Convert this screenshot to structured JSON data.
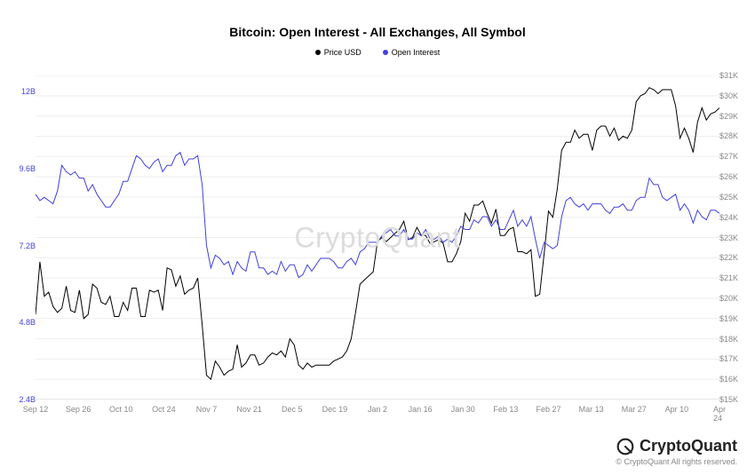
{
  "title": "Bitcoin: Open Interest - All Exchanges, All Symbol",
  "legend": [
    {
      "label": "Price USD",
      "color": "#000000"
    },
    {
      "label": "Open Interest",
      "color": "#4040e0"
    }
  ],
  "watermark": "CryptoQuant",
  "footer": {
    "brand": "CryptoQuant",
    "copyright": "© CryptoQuant All rights reserved."
  },
  "chart": {
    "type": "line",
    "background_color": "#ffffff",
    "grid_color": "#eeeeee",
    "x": {
      "categories": [
        "Sep 12",
        "Sep 26",
        "Oct 10",
        "Oct 24",
        "Nov 7",
        "Nov 21",
        "Dec 5",
        "Dec 19",
        "Jan 2",
        "Jan 16",
        "Jan 30",
        "Feb 13",
        "Feb 27",
        "Mar 13",
        "Mar 27",
        "Apr 10",
        "Apr 24"
      ],
      "label_fontsize": 9,
      "label_color": "#888888"
    },
    "y_left": {
      "min": 2.4,
      "max": 12.5,
      "ticks": [
        2.4,
        4.8,
        7.2,
        9.6,
        12
      ],
      "unit_suffix": "B",
      "color": "#4040e0",
      "label_fontsize": 9
    },
    "y_right": {
      "min": 15000,
      "max": 31000,
      "ticks": [
        15000,
        16000,
        17000,
        18000,
        19000,
        20000,
        21000,
        22000,
        23000,
        24000,
        25000,
        26000,
        27000,
        28000,
        29000,
        30000,
        31000
      ],
      "prefix": "$",
      "suffix": "K",
      "divisor": 1000,
      "color": "#888888",
      "label_fontsize": 9
    },
    "series": [
      {
        "name": "Price USD",
        "axis": "right",
        "color": "#000000",
        "line_width": 1,
        "data": [
          19200,
          21800,
          20100,
          20300,
          19600,
          19300,
          19500,
          20600,
          19400,
          19300,
          20400,
          19000,
          19200,
          20700,
          20500,
          19800,
          19700,
          20100,
          19100,
          19100,
          19800,
          19400,
          20500,
          20500,
          19100,
          19100,
          20400,
          20300,
          20400,
          19400,
          21500,
          21400,
          20600,
          21100,
          20200,
          20400,
          20500,
          21000,
          18700,
          16200,
          16000,
          16900,
          16600,
          16200,
          16400,
          16500,
          17700,
          16600,
          16800,
          17200,
          17200,
          16700,
          16800,
          17100,
          17300,
          17200,
          17400,
          17100,
          18000,
          17700,
          16700,
          16500,
          16800,
          16600,
          16700,
          16700,
          16700,
          16700,
          16900,
          17000,
          17100,
          17400,
          18000,
          19300,
          20700,
          20900,
          21100,
          21300,
          22800,
          23000,
          22800,
          23000,
          23200,
          23400,
          23800,
          22900,
          23000,
          23500,
          23100,
          23100,
          22700,
          22800,
          22900,
          22700,
          21800,
          21800,
          22200,
          22800,
          24200,
          23800,
          24600,
          24600,
          24800,
          24200,
          23700,
          24400,
          23100,
          23100,
          23400,
          23500,
          22300,
          22300,
          22200,
          22400,
          20100,
          20200,
          22200,
          24300,
          24000,
          25400,
          27300,
          27700,
          27700,
          28300,
          27900,
          28100,
          28100,
          27300,
          28300,
          28500,
          28500,
          28000,
          28400,
          27800,
          28000,
          27900,
          28300,
          29700,
          30000,
          30100,
          30400,
          30300,
          30100,
          30300,
          30300,
          30300,
          29500,
          27900,
          28400,
          27900,
          27200,
          28700,
          29400,
          28800,
          29100,
          29200,
          29400
        ]
      },
      {
        "name": "Open Interest",
        "axis": "left",
        "color": "#4040e0",
        "line_width": 1,
        "data": [
          8.8,
          8.6,
          8.7,
          8.6,
          8.5,
          8.9,
          9.7,
          9.5,
          9.4,
          9.5,
          9.3,
          9.3,
          8.9,
          9.1,
          8.8,
          8.6,
          8.4,
          8.4,
          8.6,
          8.8,
          9.2,
          9.2,
          9.6,
          10.0,
          9.9,
          9.7,
          9.6,
          9.8,
          9.9,
          9.5,
          9.7,
          9.7,
          10.0,
          10.1,
          9.7,
          9.9,
          9.9,
          10.0,
          9.1,
          7.2,
          6.5,
          6.9,
          6.8,
          6.6,
          6.7,
          6.3,
          6.7,
          6.5,
          6.4,
          7.0,
          7.0,
          6.5,
          6.5,
          6.3,
          6.4,
          6.3,
          6.7,
          6.4,
          6.6,
          6.6,
          6.2,
          6.3,
          6.6,
          6.4,
          6.6,
          6.8,
          6.8,
          6.8,
          6.7,
          6.5,
          6.5,
          6.7,
          6.8,
          6.6,
          7.0,
          7.1,
          7.3,
          7.3,
          7.3,
          7.5,
          7.6,
          7.7,
          7.5,
          7.5,
          7.7,
          7.4,
          7.4,
          7.6,
          7.5,
          7.7,
          7.4,
          7.4,
          7.5,
          7.3,
          7.4,
          7.3,
          7.5,
          7.8,
          7.7,
          7.7,
          8.0,
          7.9,
          8.1,
          8.1,
          7.8,
          8.0,
          7.7,
          7.7,
          8.0,
          8.3,
          7.8,
          8.0,
          7.8,
          8.1,
          7.4,
          6.8,
          7.3,
          7.2,
          7.1,
          7.2,
          8.1,
          8.6,
          8.7,
          8.5,
          8.4,
          8.5,
          8.3,
          8.5,
          8.5,
          8.5,
          8.3,
          8.2,
          8.4,
          8.4,
          8.5,
          8.3,
          8.3,
          8.6,
          8.7,
          8.7,
          9.3,
          9.1,
          9.1,
          8.7,
          8.6,
          8.7,
          8.8,
          8.3,
          8.5,
          8.3,
          7.9,
          8.3,
          8.1,
          8.0,
          8.3,
          8.3,
          8.2
        ]
      }
    ]
  }
}
